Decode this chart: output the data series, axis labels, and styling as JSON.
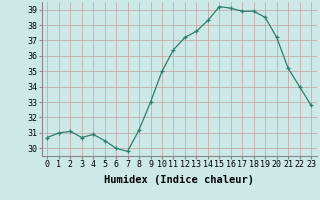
{
  "x": [
    0,
    1,
    2,
    3,
    4,
    5,
    6,
    7,
    8,
    9,
    10,
    11,
    12,
    13,
    14,
    15,
    16,
    17,
    18,
    19,
    20,
    21,
    22,
    23
  ],
  "y": [
    30.7,
    31.0,
    31.1,
    30.7,
    30.9,
    30.5,
    30.0,
    29.8,
    31.2,
    33.0,
    35.0,
    36.4,
    37.2,
    37.6,
    38.3,
    39.2,
    39.1,
    38.9,
    38.9,
    38.5,
    37.2,
    35.2,
    34.0,
    32.8
  ],
  "line_color": "#2e7d6e",
  "marker": "+",
  "marker_size": 3,
  "bg_color": "#cce9e8",
  "grid_color": "#c0a0a0",
  "xlabel": "Humidex (Indice chaleur)",
  "ylim": [
    29.5,
    39.5
  ],
  "xlim": [
    -0.5,
    23.5
  ],
  "yticks": [
    30,
    31,
    32,
    33,
    34,
    35,
    36,
    37,
    38,
    39
  ],
  "xticks": [
    0,
    1,
    2,
    3,
    4,
    5,
    6,
    7,
    8,
    9,
    10,
    11,
    12,
    13,
    14,
    15,
    16,
    17,
    18,
    19,
    20,
    21,
    22,
    23
  ],
  "label_fontsize": 7.5,
  "tick_fontsize": 6.0
}
